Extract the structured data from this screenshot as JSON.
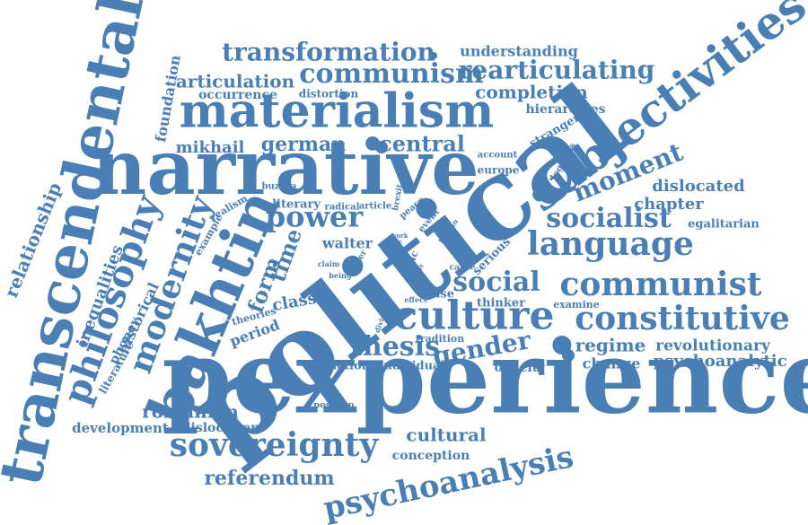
{
  "word_color": "#4a7fb5",
  "background_color": "#ffffff",
  "words": {
    "political": "political",
    "pexperience": "pexperience",
    "narrative": "narrative",
    "transcendental": "transcendental",
    "materialism": "materialism",
    "subjectivities": "subjectivities",
    "bakhtin": "bakhtin",
    "culture": "culture",
    "constitutive": "constitutive",
    "language": "language",
    "communist": "communist",
    "sovereignty": "sovereignty",
    "psychoanalysis": "psychoanalysis",
    "philosophy": "philosophy",
    "modernity": "modernity",
    "communism": "communism",
    "rearticulating": "rearticulating",
    "transformation": "transformation",
    "socialist": "socialist",
    "social": "social",
    "moment": "moment",
    "thesis": "thesis",
    "gender": "gender",
    "power": "power",
    "central": "central",
    "german": "german",
    "mikhail": "mikhail",
    "articulation": "articulation",
    "completion": "completion",
    "understanding": "understanding",
    "occurrence": "occurrence",
    "distortion": "distortion",
    "hierarchies": "hierarchies",
    "chapter": "chapter",
    "dislocated": "dislocated",
    "egalitarian": "egalitarian",
    "relationship": "relationship",
    "inequalities": "inequalities",
    "foundation": "foundation",
    "historical": "historical",
    "phoney": "phoney",
    "literature": "literature",
    "time": "time",
    "form": "form",
    "class": "class",
    "period": "period",
    "theories": "theories",
    "walter": "walter",
    "literary": "literary",
    "radical": "radical",
    "article": "article",
    "realism": "realism",
    "example": "example",
    "buzura": "buzura",
    "peace": "peace",
    "event": "event",
    "human": "human",
    "serious": "serious",
    "europe": "europe",
    "account": "account",
    "legacies": "legacies",
    "stranger": "stranger",
    "brexit": "brexit",
    "work": "work",
    "critic": "critic",
    "claim": "claim",
    "being": "being",
    "inter": "inter",
    "logic": "logic",
    "study": "study",
    "cause": "cause",
    "effect": "effect",
    "case": "case",
    "thinker": "thinker",
    "examine": "examine",
    "divide": "divide",
    "tradition": "tradition",
    "fiction": "fiction",
    "individual": "individual",
    "opacity": "opacity",
    "regime": "regime",
    "revolutionary": "revolutionary",
    "change": "change",
    "psychoanalytic": "psychoanalytic",
    "romanian": "romanian",
    "development": "development",
    "dislocation": "dislocation",
    "position": "position",
    "cultural": "cultural",
    "conception": "conception",
    "referendum": "referendum"
  }
}
